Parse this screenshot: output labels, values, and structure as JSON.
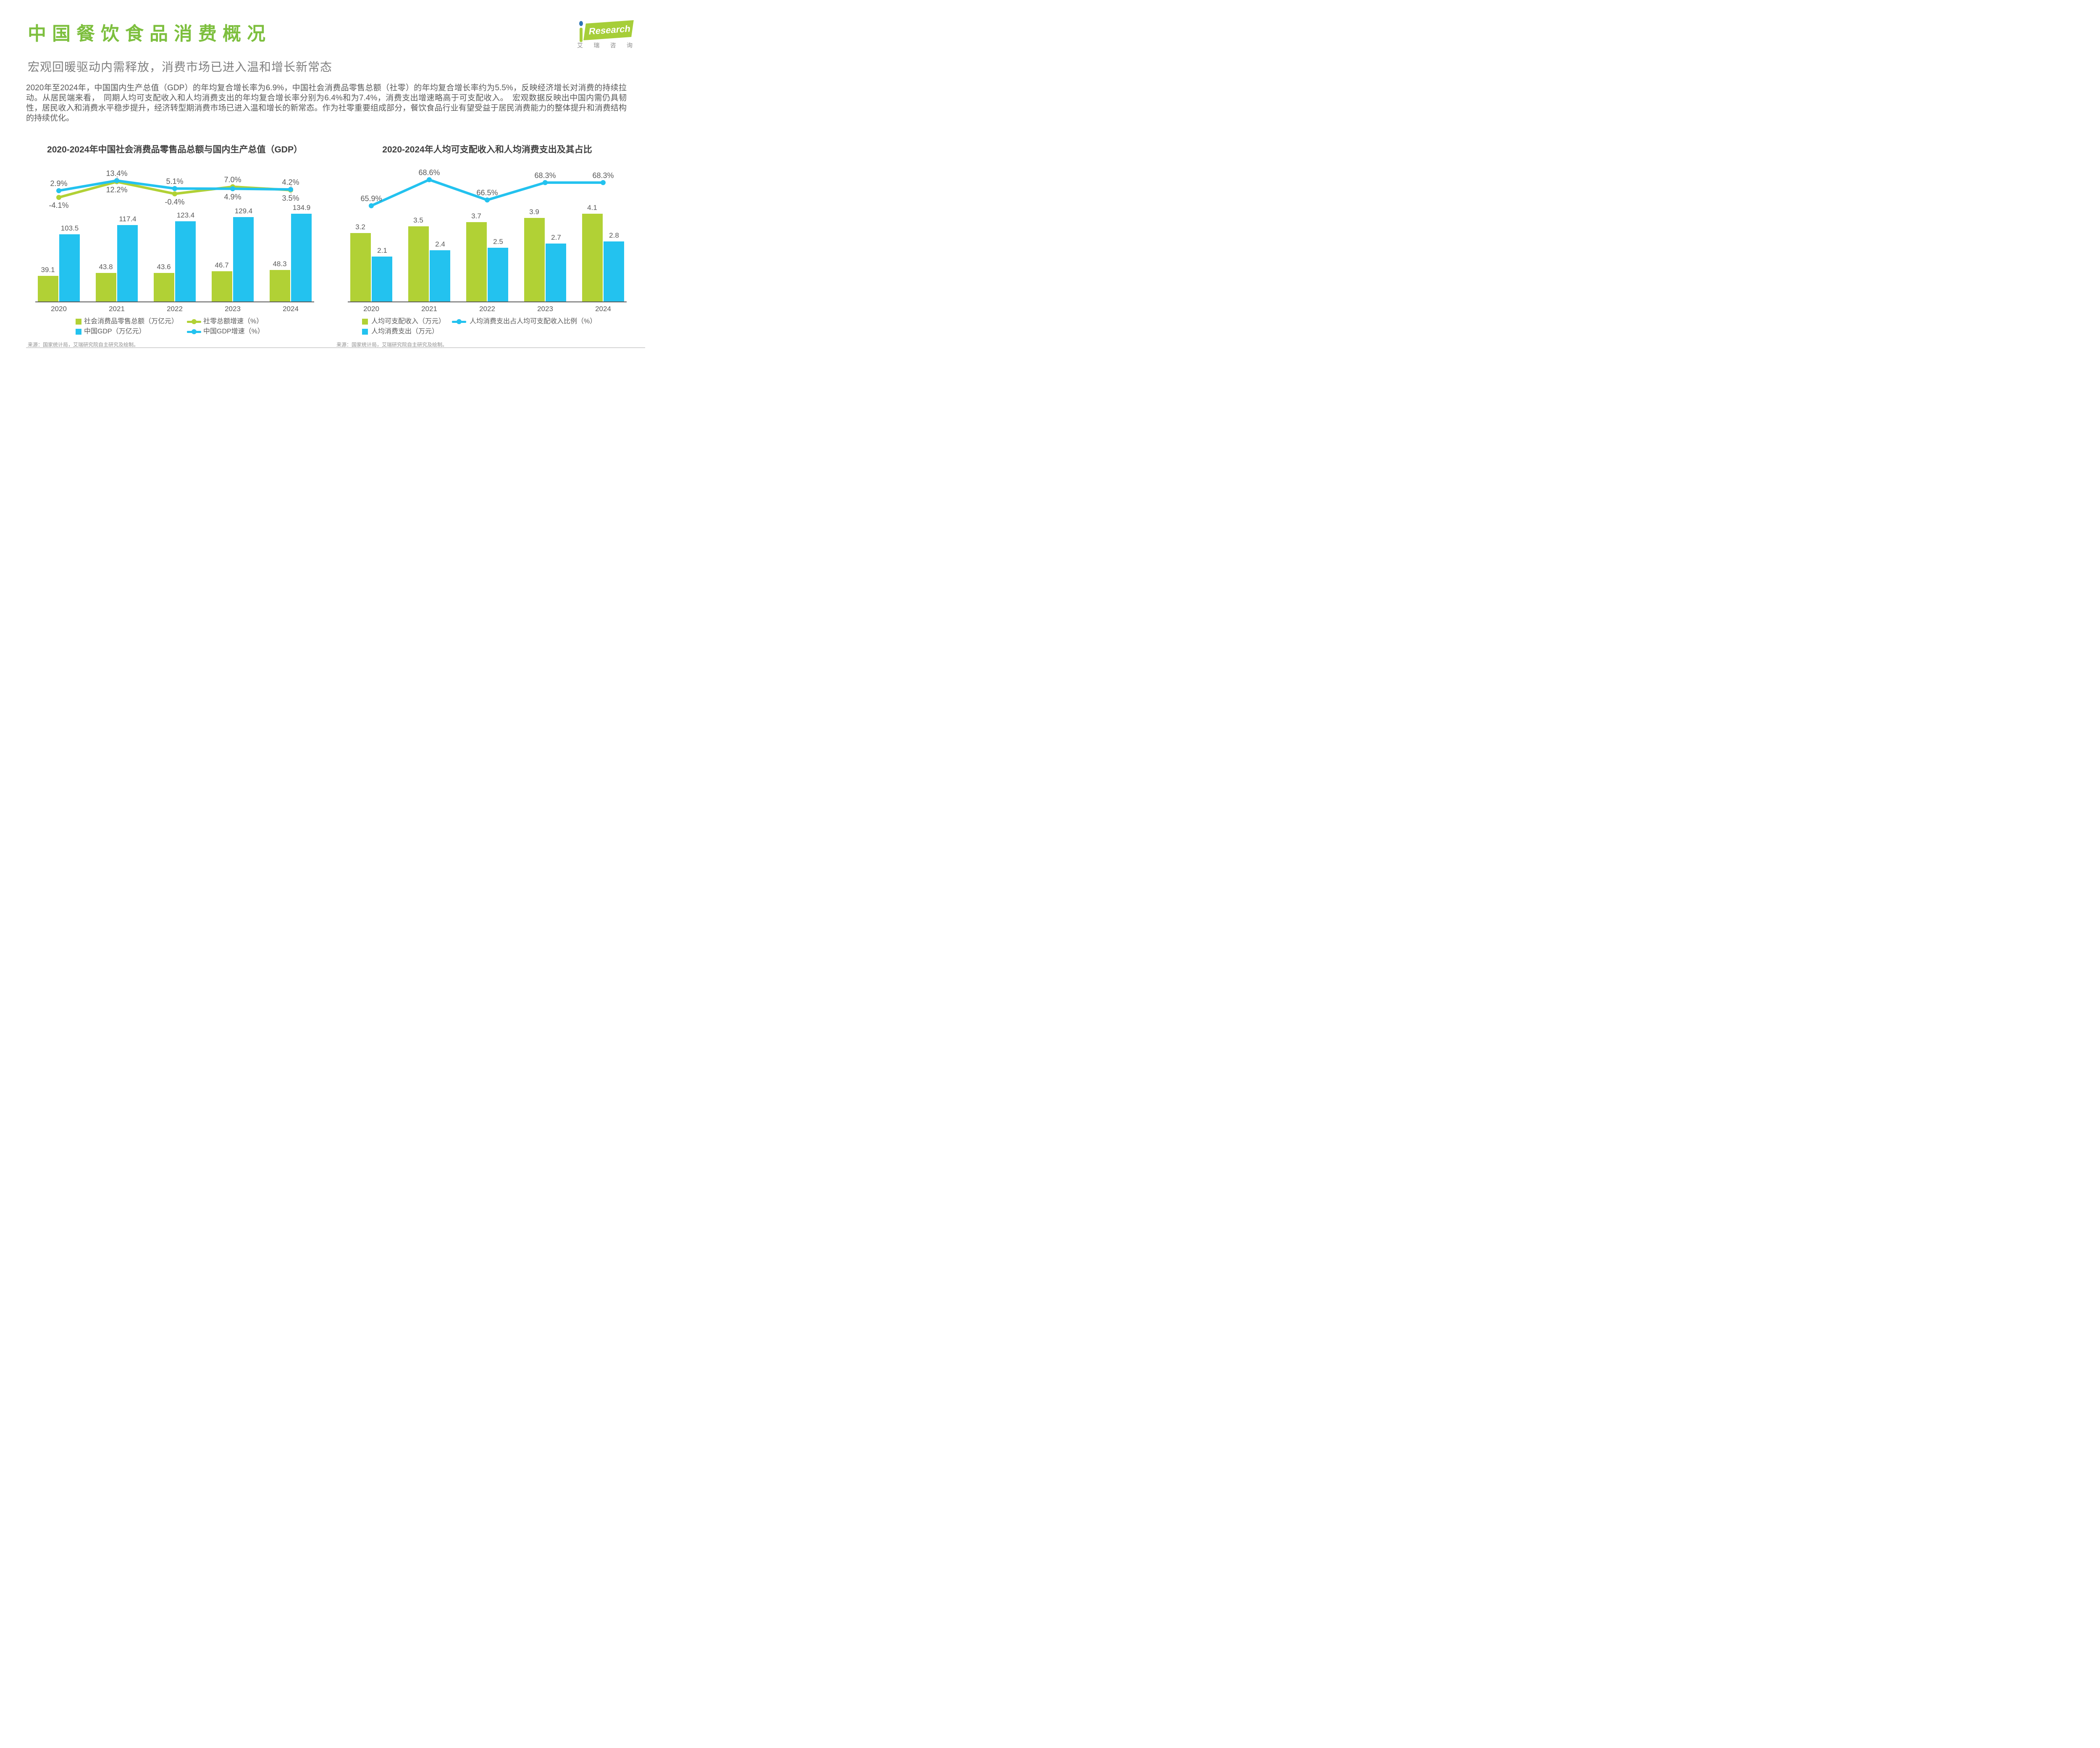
{
  "page": {
    "title": "中国餐饮食品消费概况",
    "subtitle": "宏观回暖驱动内需释放，消费市场已进入温和增长新常态",
    "body": "2020年至2024年，中国国内生产总值（GDP）的年均复合增长率为6.9%，中国社会消费品零售总额（社零）的年均复合增长率约为5.5%，反映经济增长对消费的持续拉动。从居民端来看，　同期人均可支配收入和人均消费支出的年均复合增长率分别为6.4%和为7.4%，消费支出增速略高于可支配收入。　宏观数据反映出中国内需仍具韧性，居民收入和消费水平稳步提升，经济转型期消费市场已进入温和增长的新常态。作为社零重要组成部分，餐饮食品行业有望受益于居民消费能力的整体提升和消费结构的持续优化。"
  },
  "logo": {
    "brand": "Research",
    "cn": "艾瑞咨询"
  },
  "colors": {
    "green": "#B1D135",
    "blue": "#23C2EF",
    "title_green": "#7DBF3E",
    "logo_green": "#A6CE39",
    "logo_dot_blue": "#2E75B6",
    "chart_title_gray": "#3F3F3F",
    "label_gray": "#595959",
    "subtitle_gray": "#7F7F7F",
    "source_gray": "#8F8F8F",
    "footer_line": "#D4D4D4"
  },
  "chart_data": [
    {
      "type": "bar+line",
      "title": "2020-2024年中国社会消费品零售品总额与国内生产总值（GDP）",
      "categories": [
        "2020",
        "2021",
        "2022",
        "2023",
        "2024"
      ],
      "grid": false,
      "legend_position": "bottom",
      "bar_series": [
        {
          "name": "社会消费品零售总额（万亿元）",
          "color_key": "green",
          "values": [
            39.1,
            43.8,
            43.6,
            46.7,
            48.3
          ],
          "labels": [
            "39.1",
            "43.8",
            "43.6",
            "46.7",
            "48.3"
          ]
        },
        {
          "name": "中国GDP（万亿元）",
          "color_key": "blue",
          "values": [
            103.5,
            117.4,
            123.4,
            129.4,
            134.9
          ],
          "labels": [
            "103.5",
            "117.4",
            "123.4",
            "129.4",
            "134.9"
          ]
        }
      ],
      "line_series": [
        {
          "name": "社零总额增速（%）",
          "color_key": "green",
          "values": [
            -4.1,
            12.2,
            -0.4,
            7.0,
            3.5
          ],
          "labels": [
            "-4.1%",
            "12.2%",
            "-0.4%",
            "7.0%",
            "3.5%"
          ],
          "label_side": [
            "below",
            "below",
            "below",
            "above",
            "below"
          ]
        },
        {
          "name": "中国GDP增速（%）",
          "color_key": "blue",
          "values": [
            2.9,
            13.4,
            5.1,
            4.9,
            4.2
          ],
          "labels": [
            "2.9%",
            "13.4%",
            "5.1%",
            "4.9%",
            "4.2%"
          ],
          "label_side": [
            "above",
            "above",
            "above",
            "below",
            "above"
          ]
        }
      ],
      "bar_ylim": [
        0,
        246
      ],
      "line_ylim": [
        -20,
        35
      ],
      "source": "来源：国家统计局，艾瑞研究院自主研究及绘制。"
    },
    {
      "type": "bar+line",
      "title": "2020-2024年人均可支配收入和人均消费支出及其占比",
      "categories": [
        "2020",
        "2021",
        "2022",
        "2023",
        "2024"
      ],
      "grid": false,
      "legend_position": "bottom",
      "bar_series": [
        {
          "name": "人均可支配收入（万元）",
          "color_key": "green",
          "values": [
            3.2,
            3.5,
            3.7,
            3.9,
            4.1
          ],
          "labels": [
            "3.2",
            "3.5",
            "3.7",
            "3.9",
            "4.1"
          ]
        },
        {
          "name": "人均消费支出（万元）",
          "color_key": "blue",
          "values": [
            2.1,
            2.4,
            2.5,
            2.7,
            2.8
          ],
          "labels": [
            "2.1",
            "2.4",
            "2.5",
            "2.7",
            "2.8"
          ]
        }
      ],
      "line_series": [
        {
          "name": "人均消费支出占人均可支配收入比例（%）",
          "color_key": "blue",
          "values": [
            65.9,
            68.6,
            66.5,
            68.3,
            68.3
          ],
          "labels": [
            "65.9%",
            "68.6%",
            "66.5%",
            "68.3%",
            "68.3%"
          ],
          "label_side": [
            "above",
            "above",
            "above",
            "above",
            "above"
          ]
        }
      ],
      "bar_ylim": [
        0,
        7.5
      ],
      "line_ylim": [
        61,
        72
      ],
      "source": "来源：国家统计局，艾瑞研究院自主研究及绘制。"
    }
  ]
}
